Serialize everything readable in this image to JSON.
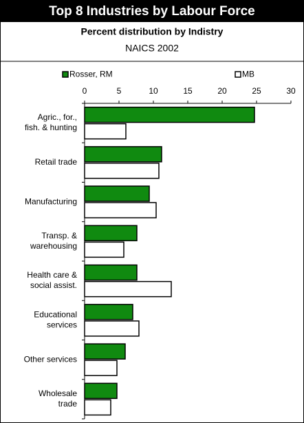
{
  "chart_data": {
    "type": "bar",
    "orientation": "horizontal",
    "title": "Top 8 Industries by Labour Force",
    "subtitle": "Percent distribution by Indistry",
    "subtitle2": "NAICS 2002",
    "categories": [
      "Agric., for.,\nfish. & hunting",
      "Retail trade",
      "Manufacturing",
      "Transp. &\nwarehousing",
      "Health care &\nsocial assist.",
      "Educational\nservices",
      "Other services",
      "Wholesale\ntrade"
    ],
    "series": [
      {
        "name": "Rosser, RM",
        "color": "#108a10",
        "values": [
          24.7,
          11.2,
          9.4,
          7.6,
          7.6,
          7.0,
          5.9,
          4.7
        ]
      },
      {
        "name": "MB",
        "color": "#ffffff",
        "values": [
          6.0,
          10.8,
          10.4,
          5.7,
          12.6,
          7.9,
          4.7,
          3.8
        ]
      }
    ],
    "xlim": [
      0,
      30
    ],
    "xticks": [
      0,
      5,
      10,
      15,
      20,
      25,
      30
    ]
  }
}
